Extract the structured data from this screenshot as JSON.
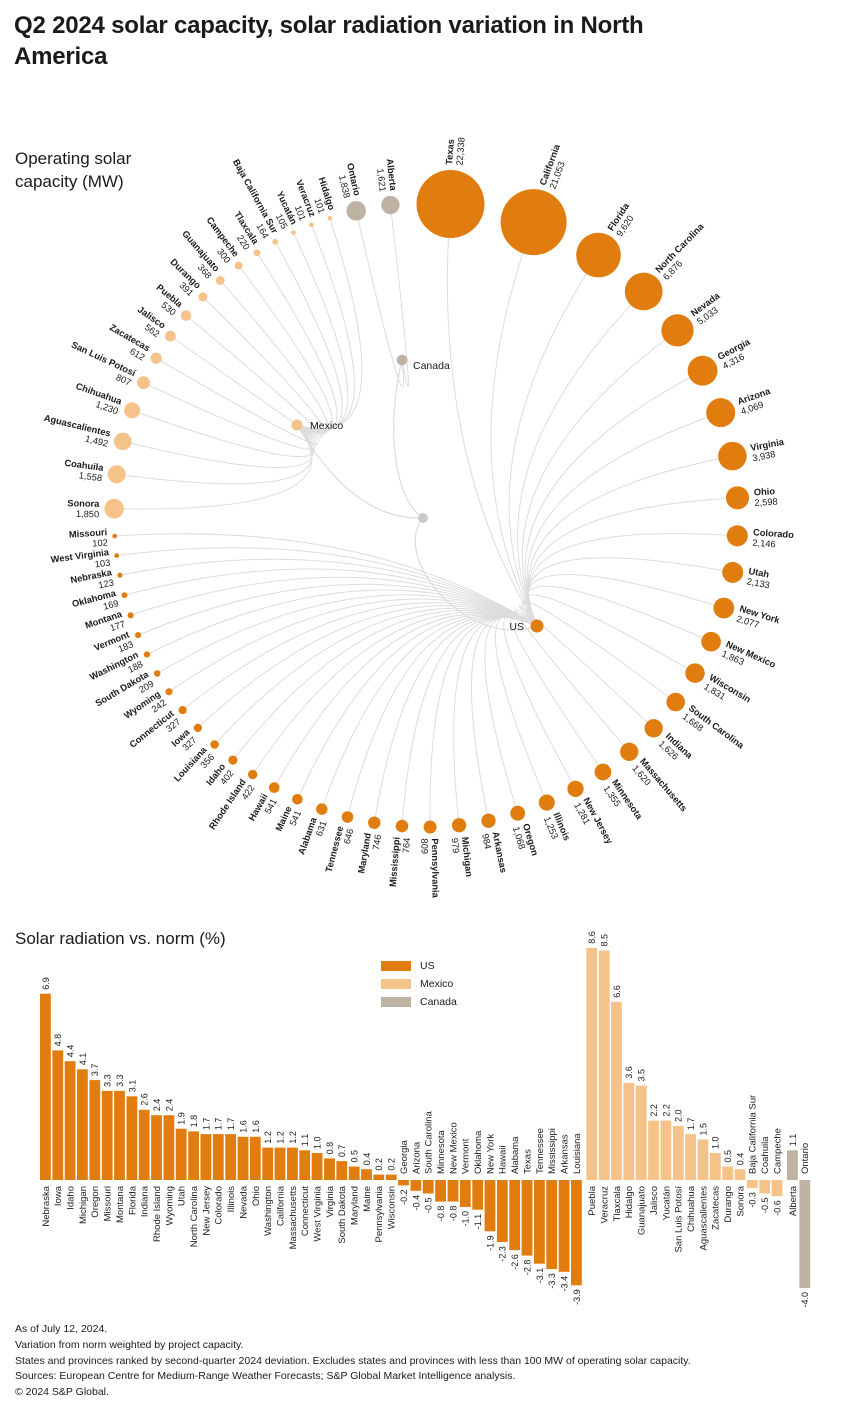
{
  "title": "Q2 2024 solar capacity, solar radiation variation in North America",
  "sections": {
    "capacity_label": "Operating solar capacity (MW)",
    "radiation_label": "Solar radiation vs. norm (%)"
  },
  "colors": {
    "us": "#E07D0E",
    "mexico": "#F5C289",
    "canada": "#BEB2A3",
    "root": "#C9C9C9",
    "edge": "#DCDCDC",
    "text": "#1A1A1A"
  },
  "legend": [
    {
      "label": "US",
      "color_key": "us"
    },
    {
      "label": "Mexico",
      "color_key": "mexico"
    },
    {
      "label": "Canada",
      "color_key": "canada"
    }
  ],
  "footnotes": [
    "As of July 12, 2024.",
    "Variation from norm weighted by project capacity.",
    "States and provinces ranked by second-quarter 2024 deviation. Excludes states and provinces with less than 100 MW of operating solar capacity.",
    "Sources: European Centre for Medium-Range Weather Forecasts; S&P Global Market Intelligence analysis.",
    "© 2024 S&P Global."
  ],
  "chart_data": [
    {
      "type": "radial-bubble-network",
      "title": "Operating solar capacity (MW)",
      "unit": "MW",
      "hubs": [
        {
          "name": "US",
          "group": "us"
        },
        {
          "name": "Mexico",
          "group": "mexico"
        },
        {
          "name": "Canada",
          "group": "canada"
        }
      ],
      "nodes": [
        {
          "name": "Texas",
          "group": "us",
          "value": 22338
        },
        {
          "name": "California",
          "group": "us",
          "value": 21053
        },
        {
          "name": "Florida",
          "group": "us",
          "value": 9620
        },
        {
          "name": "North Carolina",
          "group": "us",
          "value": 6876
        },
        {
          "name": "Nevada",
          "group": "us",
          "value": 5033
        },
        {
          "name": "Georgia",
          "group": "us",
          "value": 4316
        },
        {
          "name": "Arizona",
          "group": "us",
          "value": 4069
        },
        {
          "name": "Virginia",
          "group": "us",
          "value": 3938
        },
        {
          "name": "Ohio",
          "group": "us",
          "value": 2598
        },
        {
          "name": "Colorado",
          "group": "us",
          "value": 2146
        },
        {
          "name": "Utah",
          "group": "us",
          "value": 2133
        },
        {
          "name": "New York",
          "group": "us",
          "value": 2077
        },
        {
          "name": "New Mexico",
          "group": "us",
          "value": 1863
        },
        {
          "name": "Wisconsin",
          "group": "us",
          "value": 1831
        },
        {
          "name": "South Carolina",
          "group": "us",
          "value": 1668
        },
        {
          "name": "Indiana",
          "group": "us",
          "value": 1626
        },
        {
          "name": "Massachusetts",
          "group": "us",
          "value": 1620
        },
        {
          "name": "Minnesota",
          "group": "us",
          "value": 1355
        },
        {
          "name": "New Jersey",
          "group": "us",
          "value": 1281
        },
        {
          "name": "Illinois",
          "group": "us",
          "value": 1253
        },
        {
          "name": "Oregon",
          "group": "us",
          "value": 1068
        },
        {
          "name": "Arkansas",
          "group": "us",
          "value": 984
        },
        {
          "name": "Michigan",
          "group": "us",
          "value": 979
        },
        {
          "name": "Pennsylvania",
          "group": "us",
          "value": 809
        },
        {
          "name": "Mississippi",
          "group": "us",
          "value": 764
        },
        {
          "name": "Maryland",
          "group": "us",
          "value": 746
        },
        {
          "name": "Tennessee",
          "group": "us",
          "value": 646
        },
        {
          "name": "Alabama",
          "group": "us",
          "value": 631
        },
        {
          "name": "Maine",
          "group": "us",
          "value": 541
        },
        {
          "name": "Hawaii",
          "group": "us",
          "value": 541
        },
        {
          "name": "Rhode Island",
          "group": "us",
          "value": 422
        },
        {
          "name": "Idaho",
          "group": "us",
          "value": 402
        },
        {
          "name": "Louisiana",
          "group": "us",
          "value": 356
        },
        {
          "name": "Iowa",
          "group": "us",
          "value": 327
        },
        {
          "name": "Connecticut",
          "group": "us",
          "value": 327
        },
        {
          "name": "Wyoming",
          "group": "us",
          "value": 242
        },
        {
          "name": "South Dakota",
          "group": "us",
          "value": 209
        },
        {
          "name": "Washington",
          "group": "us",
          "value": 188
        },
        {
          "name": "Vermont",
          "group": "us",
          "value": 183
        },
        {
          "name": "Montana",
          "group": "us",
          "value": 177
        },
        {
          "name": "Oklahoma",
          "group": "us",
          "value": 169
        },
        {
          "name": "Nebraska",
          "group": "us",
          "value": 123
        },
        {
          "name": "West Virginia",
          "group": "us",
          "value": 103
        },
        {
          "name": "Missouri",
          "group": "us",
          "value": 102
        },
        {
          "name": "Sonora",
          "group": "mexico",
          "value": 1850
        },
        {
          "name": "Coahuila",
          "group": "mexico",
          "value": 1558
        },
        {
          "name": "Aguascalientes",
          "group": "mexico",
          "value": 1492
        },
        {
          "name": "Chihuahua",
          "group": "mexico",
          "value": 1230
        },
        {
          "name": "San Luis Potosí",
          "group": "mexico",
          "value": 807
        },
        {
          "name": "Zacatecas",
          "group": "mexico",
          "value": 612
        },
        {
          "name": "Jalisco",
          "group": "mexico",
          "value": 562
        },
        {
          "name": "Puebla",
          "group": "mexico",
          "value": 530
        },
        {
          "name": "Durango",
          "group": "mexico",
          "value": 391
        },
        {
          "name": "Guanajuato",
          "group": "mexico",
          "value": 368
        },
        {
          "name": "Campeche",
          "group": "mexico",
          "value": 300
        },
        {
          "name": "Tlaxcala",
          "group": "mexico",
          "value": 220
        },
        {
          "name": "Baja California Sur",
          "group": "mexico",
          "value": 164
        },
        {
          "name": "Yucatán",
          "group": "mexico",
          "value": 105
        },
        {
          "name": "Veracruz",
          "group": "mexico",
          "value": 101
        },
        {
          "name": "Hidalgo",
          "group": "mexico",
          "value": 101
        },
        {
          "name": "Ontario",
          "group": "canada",
          "value": 1838
        },
        {
          "name": "Alberta",
          "group": "canada",
          "value": 1621
        }
      ]
    },
    {
      "type": "bar",
      "title": "Solar radiation vs. norm (%)",
      "xlabel": "",
      "ylabel": "%",
      "ylim": [
        -4.0,
        8.6
      ],
      "legend_position": "top-center",
      "series": [
        {
          "name": "US",
          "color_key": "us",
          "categories": [
            "Nebraska",
            "Iowa",
            "Idaho",
            "Michigan",
            "Oregon",
            "Missouri",
            "Montana",
            "Florida",
            "Indiana",
            "Rhode Island",
            "Wyoming",
            "Utah",
            "North Carolina",
            "New Jersey",
            "Colorado",
            "Illinois",
            "Nevada",
            "Ohio",
            "Washington",
            "California",
            "Massachusetts",
            "Connecticut",
            "West Virginia",
            "Virginia",
            "South Dakota",
            "Maryland",
            "Maine",
            "Pennsylvania",
            "Wisconsin",
            "Georgia",
            "Arizona",
            "South Carolina",
            "Minnesota",
            "New Mexico",
            "Vermont",
            "Oklahoma",
            "New York",
            "Hawaii",
            "Alabama",
            "Texas",
            "Tennessee",
            "Mississippi",
            "Arkansas",
            "Louisiana"
          ],
          "values": [
            6.9,
            4.8,
            4.4,
            4.1,
            3.7,
            3.3,
            3.3,
            3.1,
            2.6,
            2.4,
            2.4,
            1.9,
            1.8,
            1.7,
            1.7,
            1.7,
            1.6,
            1.6,
            1.2,
            1.2,
            1.2,
            1.1,
            1.0,
            0.8,
            0.7,
            0.5,
            0.4,
            0.2,
            0.2,
            -0.2,
            -0.4,
            -0.5,
            -0.8,
            -0.8,
            -1.0,
            -1.1,
            -1.9,
            -2.3,
            -2.6,
            -2.8,
            -3.1,
            -3.3,
            -3.4,
            -3.9
          ]
        },
        {
          "name": "Mexico",
          "color_key": "mexico",
          "categories": [
            "Puebla",
            "Veracruz",
            "Tlaxcala",
            "Hidalgo",
            "Guanajuato",
            "Jalisco",
            "Yucatán",
            "San Luis Potosí",
            "Chihuahua",
            "Aguascalientes",
            "Zacatecas",
            "Durango",
            "Sonora",
            "Baja California Sur",
            "Coahuila",
            "Campeche"
          ],
          "values": [
            8.6,
            8.5,
            6.6,
            3.6,
            3.5,
            2.2,
            2.2,
            2.0,
            1.7,
            1.5,
            1.0,
            0.5,
            0.4,
            -0.3,
            -0.5,
            -0.6
          ]
        },
        {
          "name": "Canada",
          "color_key": "canada",
          "categories": [
            "Alberta",
            "Ontario"
          ],
          "values": [
            1.1,
            -4.0
          ]
        }
      ]
    }
  ]
}
